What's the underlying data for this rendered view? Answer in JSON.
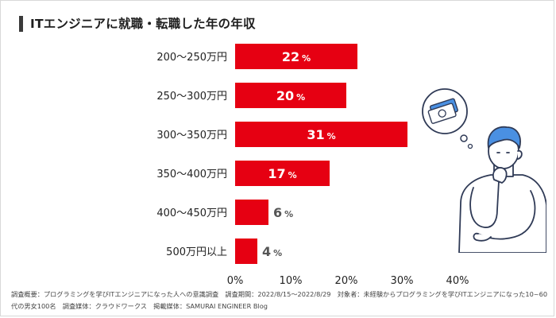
{
  "title": "ITエンジニアに就職・転職した年の年収",
  "chart_data": {
    "type": "bar",
    "orientation": "horizontal",
    "categories": [
      "200〜250万円",
      "250〜300万円",
      "300〜350万円",
      "350〜400万円",
      "400〜450万円",
      "500万円以上"
    ],
    "values": [
      22,
      20,
      31,
      17,
      6,
      4
    ],
    "value_suffix": "%",
    "x_ticks": [
      "0%",
      "10%",
      "20%",
      "30%",
      "40%"
    ],
    "xlim": [
      0,
      40
    ],
    "bar_color": "#e60012",
    "grid": false,
    "legend": "none"
  },
  "footnote": "調査概要：プログラミングを学びITエンジニアになった人への意識調査　調査期間：2022/8/15〜2022/8/29　対象者：未経験からプログラミングを学びITエンジニアになった10~60代の男女100名　調査媒体：クラウドワークス　掲載媒体：SAMURAI ENGINEER Blog",
  "illustration": {
    "description_icon": "money-thought-bubble-icon"
  }
}
